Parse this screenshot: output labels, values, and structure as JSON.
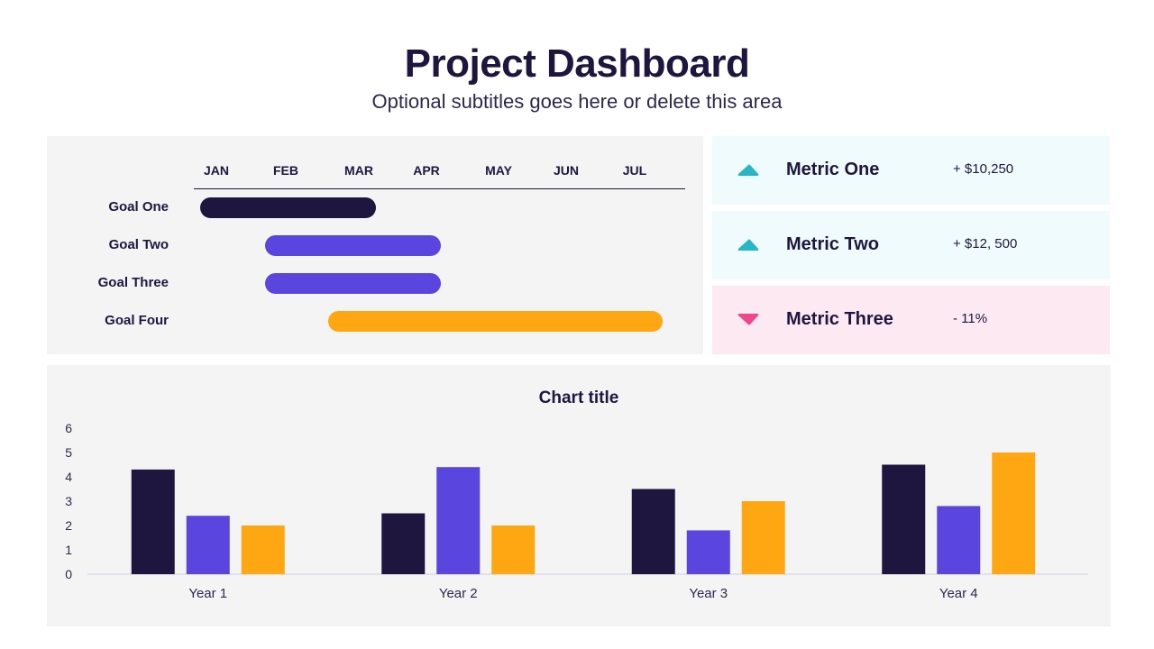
{
  "header": {
    "title": "Project Dashboard",
    "subtitle": "Optional subtitles goes here or delete this area"
  },
  "gantt": {
    "months": [
      "JAN",
      "FEB",
      "MAR",
      "APR",
      "MAY",
      "JUN",
      "JUL"
    ],
    "goals": [
      {
        "label": "Goal One",
        "start": "JAN",
        "end": "MAR",
        "color": "#1f1640"
      },
      {
        "label": "Goal Two",
        "start": "FEB",
        "end": "APR",
        "color": "#5a45df"
      },
      {
        "label": "Goal Three",
        "start": "FEB",
        "end": "APR",
        "color": "#5a45df"
      },
      {
        "label": "Goal Four",
        "start": "MAR",
        "end": "JUL",
        "color": "#fea713"
      }
    ]
  },
  "metrics": [
    {
      "name": "Metric One",
      "value": "+ $10,250",
      "trend": "up",
      "trend_color": "#26b6c6",
      "bg": "#effbfd"
    },
    {
      "name": "Metric Two",
      "value": "+ $12, 500",
      "trend": "up",
      "trend_color": "#26b6c6",
      "bg": "#effbfd"
    },
    {
      "name": "Metric Three",
      "value": "- 11%",
      "trend": "down",
      "trend_color": "#f0478c",
      "bg": "#fde9f2"
    }
  ],
  "chart_data": {
    "type": "bar",
    "title": "Chart title",
    "categories": [
      "Year 1",
      "Year 2",
      "Year 3",
      "Year 4"
    ],
    "series": [
      {
        "values": [
          4.3,
          2.5,
          3.5,
          4.5
        ],
        "color": "#1f1640"
      },
      {
        "values": [
          2.4,
          4.4,
          1.8,
          2.8
        ],
        "color": "#5a45df"
      },
      {
        "values": [
          2.0,
          2.0,
          3.0,
          5.0
        ],
        "color": "#fea713"
      }
    ],
    "ylim": [
      0,
      6
    ],
    "yticks": [
      "0",
      "1",
      "2",
      "3",
      "4",
      "5",
      "6"
    ],
    "grid": false,
    "legend": "none"
  }
}
